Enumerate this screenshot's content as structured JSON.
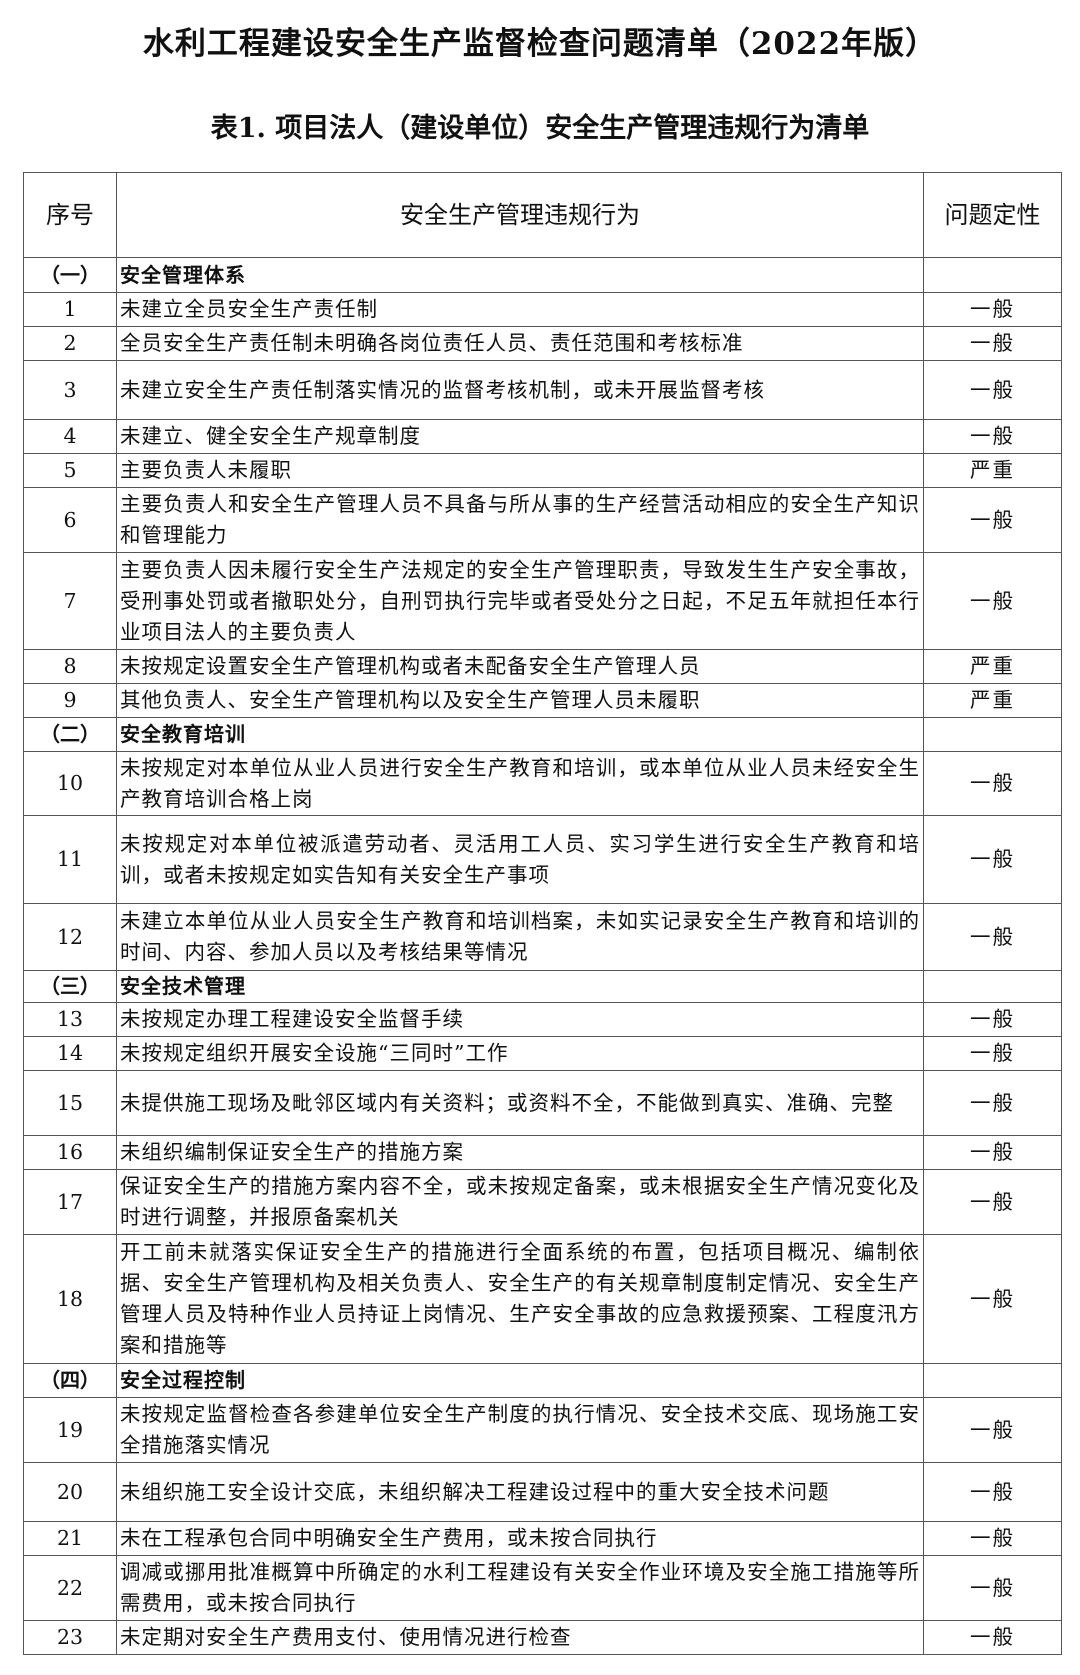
{
  "title": "水利工程建设安全生产监督检查问题清单（2022年版）",
  "subtitle": "表1. 项目法人（建设单位）安全生产管理违规行为清单",
  "table": {
    "headers": [
      "序号",
      "安全生产管理违规行为",
      "问题定性"
    ],
    "rows": [
      {
        "type": "section",
        "no": "（一）",
        "text": "安全管理体系",
        "level": "",
        "h": 35
      },
      {
        "type": "item",
        "no": "1",
        "text": "未建立全员安全生产责任制",
        "level": "一般",
        "h": 34
      },
      {
        "type": "item",
        "no": "2",
        "text": "全员安全生产责任制未明确各岗位责任人员、责任范围和考核标准",
        "level": "一般",
        "h": 34
      },
      {
        "type": "item",
        "no": "3",
        "text": "未建立安全生产责任制落实情况的监督考核机制，或未开展监督考核",
        "level": "一般",
        "h": 59
      },
      {
        "type": "item",
        "no": "4",
        "text": "未建立、健全安全生产规章制度",
        "level": "一般",
        "h": 34
      },
      {
        "type": "item",
        "no": "5",
        "text": "主要负责人未履职",
        "level": "严重",
        "h": 34
      },
      {
        "type": "item",
        "no": "6",
        "text": "主要负责人和安全生产管理人员不具备与所从事的生产经营活动相应的安全生产知识和管理能力",
        "level": "一般",
        "h": 65
      },
      {
        "type": "item",
        "no": "7",
        "text": "主要负责人因未履行安全生产法规定的安全生产管理职责，导致发生生产安全事故，受刑事处罚或者撤职处分，自刑罚执行完毕或者受处分之日起，不足五年就担任本行业项目法人的主要负责人",
        "level": "一般",
        "h": 97
      },
      {
        "type": "item",
        "no": "8",
        "text": "未按规定设置安全生产管理机构或者未配备安全生产管理人员",
        "level": "严重",
        "h": 34
      },
      {
        "type": "item",
        "no": "9",
        "text": "其他负责人、安全生产管理机构以及安全生产管理人员未履职",
        "level": "严重",
        "h": 34
      },
      {
        "type": "section",
        "no": "（二）",
        "text": "安全教育培训",
        "level": "",
        "h": 34
      },
      {
        "type": "item",
        "no": "10",
        "text": "未按规定对本单位从业人员进行安全生产教育和培训，或本单位从业人员未经安全生产教育培训合格上岗",
        "level": "一般",
        "h": 64
      },
      {
        "type": "item",
        "no": "11",
        "text": "未按规定对本单位被派遣劳动者、灵活用工人员、实习学生进行安全生产教育和培训，或者未按规定如实告知有关安全生产事项",
        "level": "一般",
        "h": 88
      },
      {
        "type": "item",
        "no": "12",
        "text": "未建立本单位从业人员安全生产教育和培训档案，未如实记录安全生产教育和培训的时间、内容、参加人员以及考核结果等情况",
        "level": "一般",
        "h": 67
      },
      {
        "type": "section",
        "no": "（三）",
        "text": "安全技术管理",
        "level": "",
        "h": 32
      },
      {
        "type": "item",
        "no": "13",
        "text": "未按规定办理工程建设安全监督手续",
        "level": "一般",
        "h": 34
      },
      {
        "type": "item",
        "no": "14",
        "text": "未按规定组织开展安全设施“三同时”工作",
        "level": "一般",
        "h": 34
      },
      {
        "type": "item",
        "no": "15",
        "text": "未提供施工现场及毗邻区域内有关资料；或资料不全，不能做到真实、准确、完整",
        "level": "一般",
        "h": 65
      },
      {
        "type": "item",
        "no": "16",
        "text": "未组织编制保证安全生产的措施方案",
        "level": "一般",
        "h": 34
      },
      {
        "type": "item",
        "no": "17",
        "text": "保证安全生产的措施方案内容不全，或未按规定备案，或未根据安全生产情况变化及时进行调整，并报原备案机关",
        "level": "一般",
        "h": 65
      },
      {
        "type": "item",
        "no": "18",
        "text": "开工前未就落实保证安全生产的措施进行全面系统的布置，包括项目概况、编制依据、安全生产管理机构及相关负责人、安全生产的有关规章制度制定情况、安全生产管理人员及特种作业人员持证上岗情况、生产安全事故的应急救援预案、工程度汛方案和措施等",
        "level": "一般",
        "h": 129
      },
      {
        "type": "section",
        "no": "（四）",
        "text": "安全过程控制",
        "level": "",
        "h": 34
      },
      {
        "type": "item",
        "no": "19",
        "text": "未按规定监督检查各参建单位安全生产制度的执行情况、安全技术交底、现场施工安全措施落实情况",
        "level": "一般",
        "h": 65
      },
      {
        "type": "item",
        "no": "20",
        "text": "未组织施工安全设计交底，未组织解决工程建设过程中的重大安全技术问题",
        "level": "一般",
        "h": 59
      },
      {
        "type": "item",
        "no": "21",
        "text": "未在工程承包合同中明确安全生产费用，或未按合同执行",
        "level": "一般",
        "h": 34
      },
      {
        "type": "item",
        "no": "22",
        "text": "调减或挪用批准概算中所确定的水利工程建设有关安全作业环境及安全施工措施等所需费用，或未按合同执行",
        "level": "一般",
        "h": 65
      },
      {
        "type": "item",
        "no": "23",
        "text": "未定期对安全生产费用支付、使用情况进行检查",
        "level": "一般",
        "h": 34
      }
    ]
  }
}
